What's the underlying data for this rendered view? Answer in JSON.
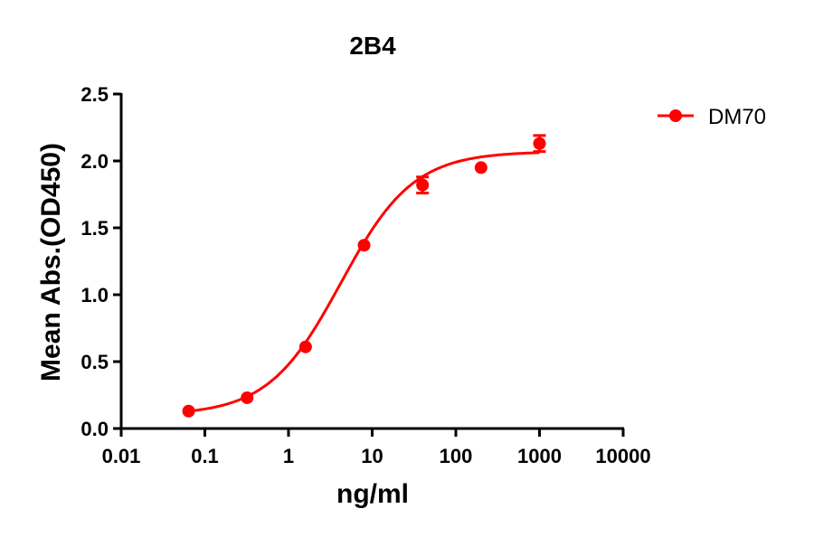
{
  "chart_data": {
    "type": "scatter",
    "title": "2B4",
    "xlabel": "ng/ml",
    "ylabel": "Mean Abs.(OD450)",
    "xscale": "log",
    "xlim": [
      0.01,
      10000
    ],
    "ylim": [
      0.0,
      2.5
    ],
    "xticks": [
      0.01,
      0.1,
      1,
      10,
      100,
      1000,
      10000
    ],
    "xtick_labels": [
      "0.01",
      "0.1",
      "1",
      "10",
      "100",
      "1000",
      "10000"
    ],
    "yticks": [
      0.0,
      0.5,
      1.0,
      1.5,
      2.0,
      2.5
    ],
    "ytick_labels": [
      "0.0",
      "0.5",
      "1.0",
      "1.5",
      "2.0",
      "2.5"
    ],
    "grid": false,
    "legend_position": "right-top",
    "series": [
      {
        "name": "DM70",
        "color": "#ff0000",
        "marker": "circle",
        "fit": "4PL sigmoidal curve",
        "x": [
          0.064,
          0.32,
          1.6,
          8,
          40,
          200,
          1000
        ],
        "y": [
          0.13,
          0.23,
          0.61,
          1.37,
          1.82,
          1.95,
          2.13
        ],
        "y_err": [
          0.0,
          0.0,
          0.0,
          0.0,
          0.06,
          0.0,
          0.06
        ]
      }
    ],
    "fit_params": {
      "bottom": 0.1,
      "top": 2.07,
      "ec50": 4.2,
      "hill": 1.0
    }
  }
}
